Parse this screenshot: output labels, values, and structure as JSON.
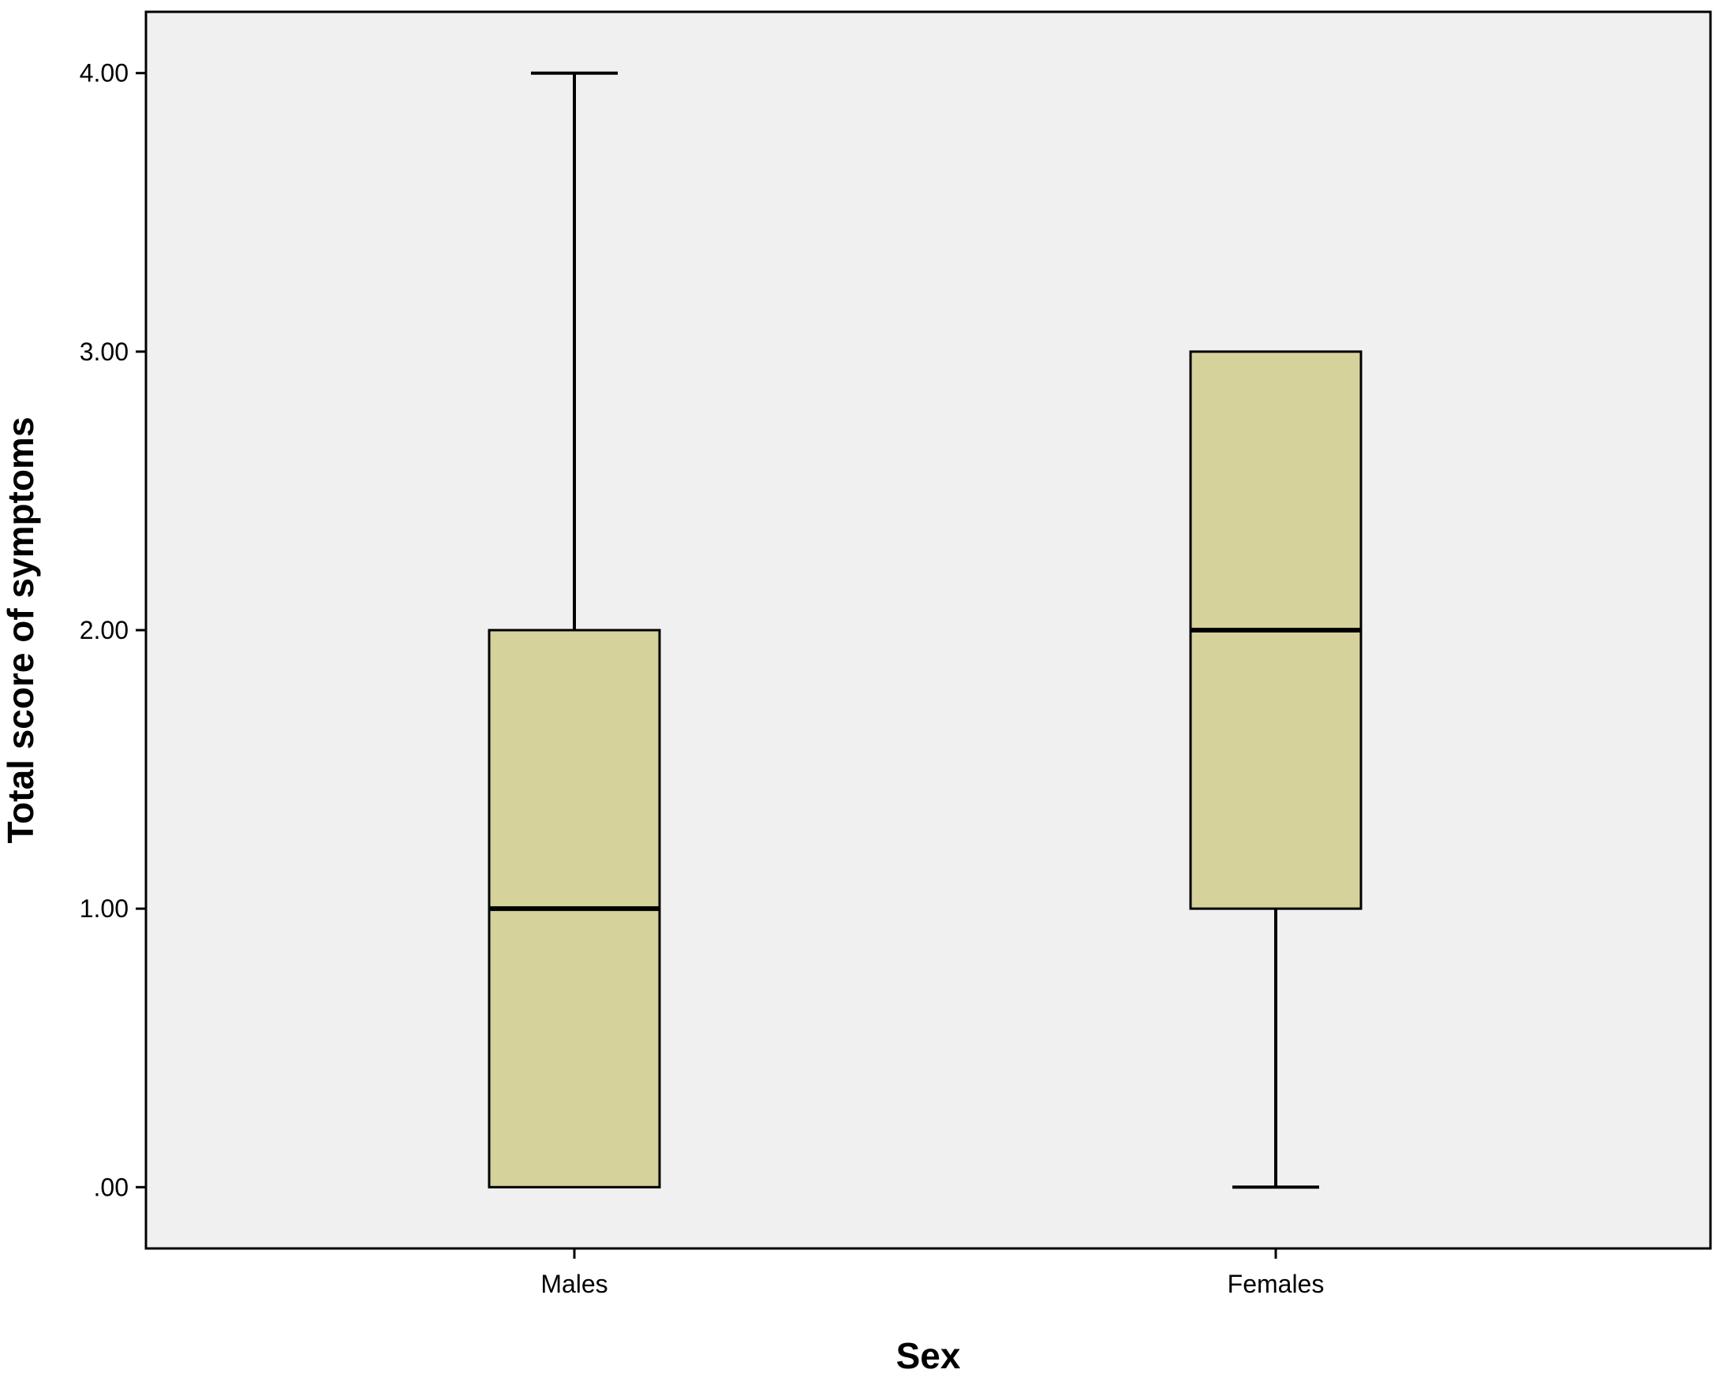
{
  "chart_data": {
    "type": "box",
    "xlabel": "Sex",
    "ylabel": "Total score of symptoms",
    "categories": [
      "Males",
      "Females"
    ],
    "yticks": [
      0,
      1,
      2,
      3,
      4
    ],
    "ytick_labels": [
      ".00",
      "1.00",
      "2.00",
      "3.00",
      "4.00"
    ],
    "ylim": [
      -0.22,
      4.22
    ],
    "boxes": [
      {
        "category": "Males",
        "min": 0,
        "q1": 0,
        "median": 1,
        "q3": 2,
        "max": 4
      },
      {
        "category": "Females",
        "min": 0,
        "q1": 1,
        "median": 2,
        "q3": 3,
        "max": 3
      }
    ],
    "colors": {
      "plot_background": "#f0f0f0",
      "box_fill": "#d5d29b",
      "stroke": "#000000"
    },
    "grid": false,
    "legend": "none"
  }
}
